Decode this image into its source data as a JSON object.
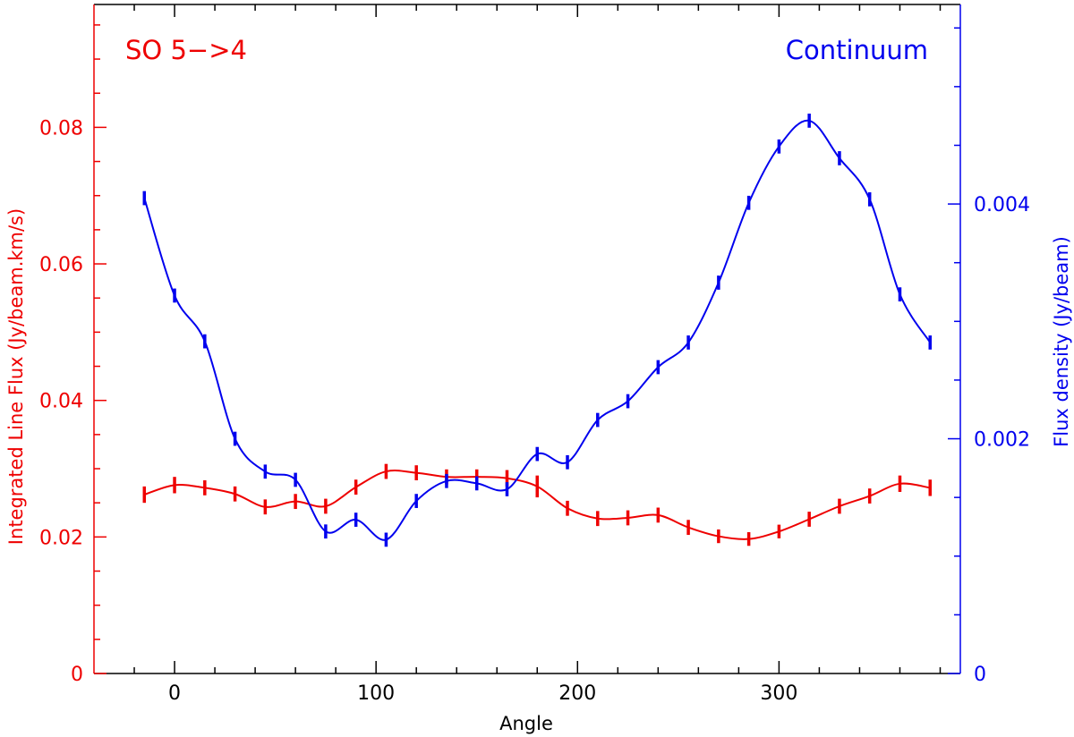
{
  "chart_data": {
    "type": "line",
    "xlabel": "Angle",
    "ylabel_left": "Integrated Line Flux (Jy/beam.km/s)",
    "ylabel_right": "Flux density (Jy/beam)",
    "xlim": [
      -40,
      390
    ],
    "ylim_left": [
      0,
      0.098
    ],
    "ylim_right": [
      0,
      0.0057
    ],
    "x_ticks": [
      0,
      100,
      200,
      300
    ],
    "y_left_ticks": [
      0,
      0.02,
      0.04,
      0.06,
      0.08
    ],
    "y_left_tick_labels": [
      "0",
      "0.02",
      "0.04",
      "0.06",
      "0.08"
    ],
    "y_right_ticks": [
      0,
      0.002,
      0.004
    ],
    "y_right_tick_labels": [
      "0",
      "0.002",
      "0.004"
    ],
    "grid": false,
    "colors": {
      "left": "#ee0000",
      "right": "#0000ee",
      "axis": "#000000"
    },
    "series": [
      {
        "name": "SO 5->4",
        "axis": "left",
        "color": "#ee0000",
        "x": [
          -15,
          0,
          15,
          30,
          45,
          60,
          75,
          90,
          105,
          120,
          135,
          150,
          165,
          180,
          195,
          210,
          225,
          240,
          255,
          270,
          285,
          300,
          315,
          330,
          345,
          360,
          375
        ],
        "values": [
          0.0262,
          0.0276,
          0.0272,
          0.0263,
          0.0244,
          0.0252,
          0.0245,
          0.0273,
          0.0296,
          0.0294,
          0.0288,
          0.0288,
          0.0286,
          0.0274,
          0.0242,
          0.0227,
          0.0228,
          0.0232,
          0.0214,
          0.0201,
          0.0197,
          0.0208,
          0.0226,
          0.0245,
          0.026,
          0.0278,
          0.0272
        ],
        "errors": [
          0.0012,
          0.0012,
          0.0011,
          0.0011,
          0.0011,
          0.0011,
          0.0011,
          0.0011,
          0.0011,
          0.0011,
          0.0011,
          0.0011,
          0.0012,
          0.0016,
          0.0011,
          0.0011,
          0.0011,
          0.0011,
          0.0011,
          0.001,
          0.001,
          0.001,
          0.0011,
          0.0011,
          0.0011,
          0.0012,
          0.0012
        ]
      },
      {
        "name": "Continuum",
        "axis": "right",
        "color": "#0000ee",
        "x": [
          -15,
          0,
          15,
          30,
          45,
          60,
          75,
          90,
          105,
          120,
          135,
          150,
          165,
          180,
          195,
          210,
          225,
          240,
          255,
          270,
          285,
          300,
          315,
          330,
          345,
          360,
          375
        ],
        "values": [
          0.00405,
          0.00322,
          0.00283,
          0.002,
          0.00172,
          0.00165,
          0.00121,
          0.00131,
          0.00114,
          0.00147,
          0.00164,
          0.00162,
          0.00157,
          0.00187,
          0.0018,
          0.00216,
          0.00232,
          0.00261,
          0.00282,
          0.00333,
          0.00401,
          0.00449,
          0.00471,
          0.00439,
          0.00404,
          0.00323,
          0.00282
        ],
        "errors": [
          6e-05,
          6e-05,
          6e-05,
          6e-05,
          6e-05,
          6e-05,
          6e-05,
          6e-05,
          6e-05,
          6e-05,
          6e-05,
          6e-05,
          6e-05,
          6e-05,
          6e-05,
          6e-05,
          6e-05,
          6e-05,
          6e-05,
          6e-05,
          6e-05,
          6e-05,
          6e-05,
          6e-05,
          6e-05,
          6e-05,
          6e-05
        ]
      }
    ],
    "legend": [
      {
        "label": "SO 5−>4",
        "color": "#ee0000",
        "placement": "top-left"
      },
      {
        "label": "Continuum",
        "color": "#0000ee",
        "placement": "top-right"
      }
    ]
  }
}
